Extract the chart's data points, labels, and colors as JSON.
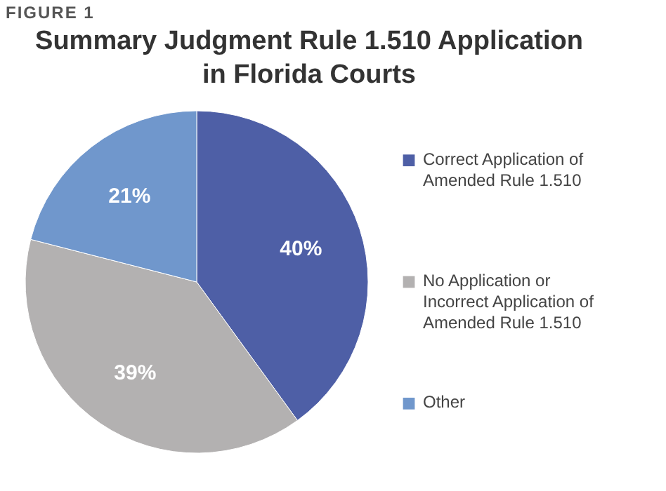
{
  "chart_data": {
    "type": "pie",
    "title": "Summary Judgment Rule 1.510 Application in Florida Courts",
    "categories": [
      "Correct Application of Amended Rule 1.510",
      "No Application or Incorrect Application of Amended Rule 1.510",
      "Other"
    ],
    "values": [
      40,
      39,
      21
    ],
    "colors": [
      "#4e5fa6",
      "#b3b1b1",
      "#7097cc"
    ],
    "value_labels": [
      "40%",
      "39%",
      "21%"
    ],
    "legend": "right",
    "annotations": [
      "FIGURE 1"
    ]
  }
}
